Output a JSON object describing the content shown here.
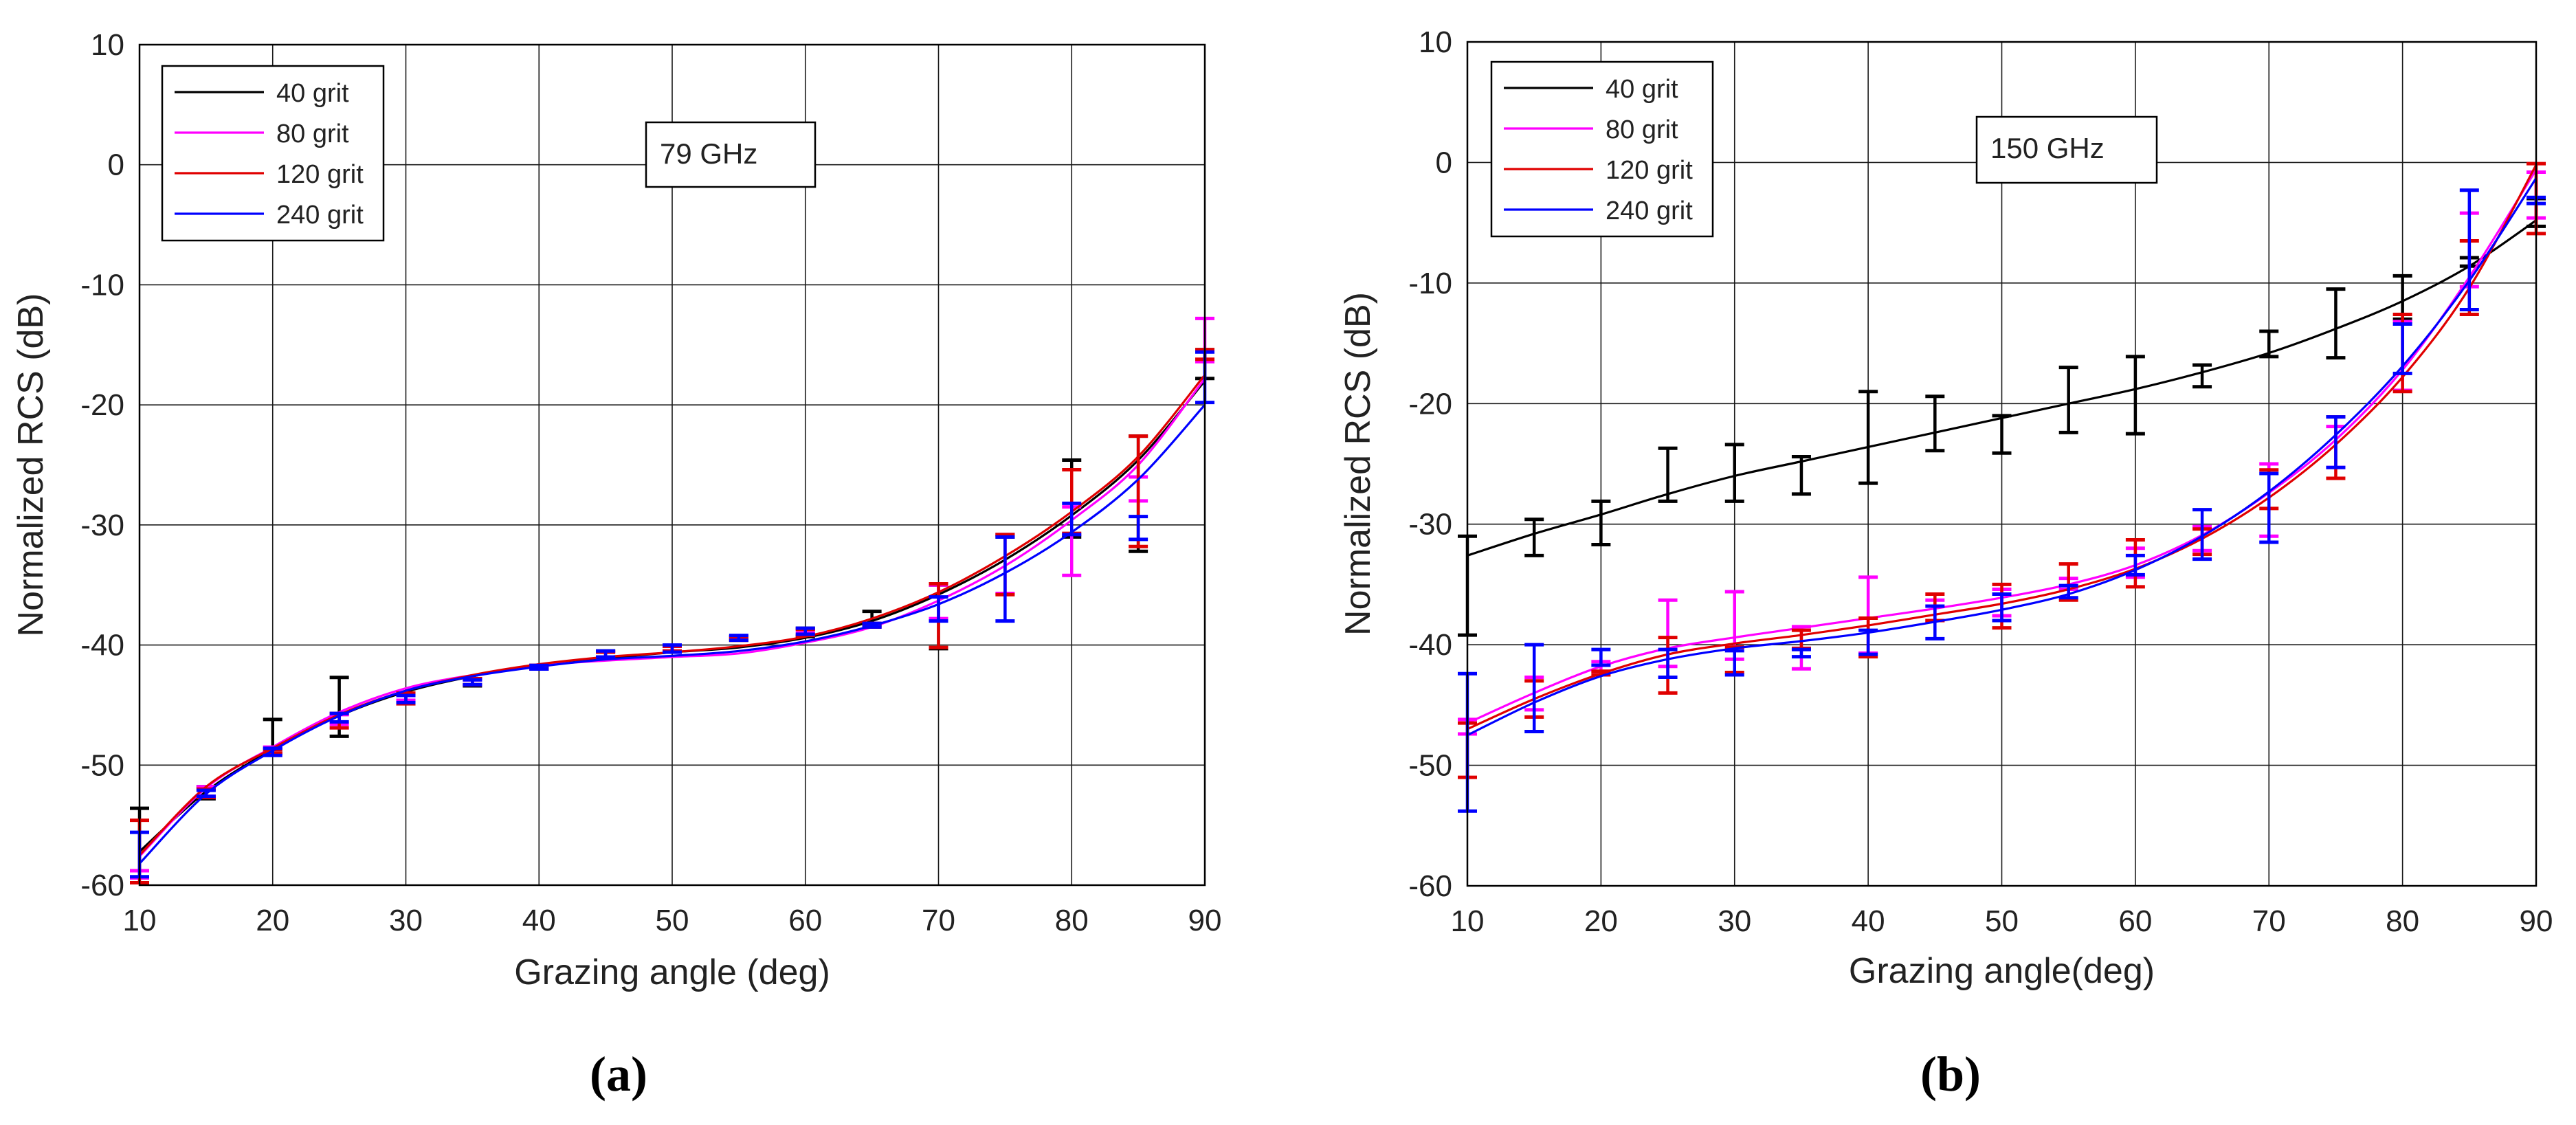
{
  "figure": {
    "label_a": "(a)",
    "label_b": "(b)"
  },
  "chart_data": [
    {
      "type": "line",
      "title": "",
      "annotation": "79 GHz",
      "xlabel": "Grazing angle (deg)",
      "ylabel": "Normalized RCS (dB)",
      "xlim": [
        10,
        90
      ],
      "ylim": [
        -60,
        10
      ],
      "xticks": [
        10,
        20,
        30,
        40,
        50,
        60,
        70,
        80,
        90
      ],
      "yticks": [
        10,
        0,
        -10,
        -20,
        -30,
        -40,
        -50,
        -60
      ],
      "grid": true,
      "legend_position": "top-left",
      "series": [
        {
          "name": "40 grit",
          "color": "#000000",
          "curve": {
            "x": [
              10,
              15,
              20,
              25,
              30,
              35,
              40,
              45,
              50,
              55,
              60,
              65,
              70,
              75,
              80,
              85,
              90
            ],
            "y": [
              -57.2,
              -52.2,
              -48.7,
              -45.9,
              -43.9,
              -42.6,
              -41.7,
              -41.1,
              -40.6,
              -40.2,
              -39.4,
              -38.0,
              -35.8,
              -32.9,
              -29.2,
              -24.6,
              -18.0
            ]
          },
          "err": {
            "x": [
              10,
              15,
              20,
              25,
              30,
              35,
              40,
              45,
              50,
              55,
              60,
              65,
              70,
              75,
              80,
              85,
              90
            ],
            "lo": [
              -58.8,
              -52.8,
              -49.0,
              -47.6,
              -44.8,
              -43.4,
              -42.0,
              -41.0,
              -40.6,
              -39.6,
              -39.3,
              -38.4,
              -40.3,
              -31.0,
              -31.0,
              -32.2,
              -17.8
            ],
            "hi": [
              -53.6,
              -51.8,
              -46.2,
              -42.7,
              -44.0,
              -42.8,
              -41.7,
              -40.5,
              -40.1,
              -39.3,
              -38.6,
              -37.2,
              -35.0,
              -30.8,
              -24.6,
              -22.6,
              -15.4
            ]
          }
        },
        {
          "name": "80 grit",
          "color": "#ff00ff",
          "curve": {
            "x": [
              10,
              15,
              20,
              25,
              30,
              35,
              40,
              45,
              50,
              55,
              60,
              65,
              70,
              75,
              80,
              85,
              90
            ],
            "y": [
              -57.6,
              -51.9,
              -48.5,
              -45.6,
              -43.6,
              -42.5,
              -41.7,
              -41.3,
              -41.0,
              -40.7,
              -39.8,
              -38.5,
              -36.3,
              -33.4,
              -29.6,
              -25.0,
              -17.8
            ]
          },
          "err": {
            "x": [
              10,
              15,
              20,
              25,
              30,
              35,
              40,
              45,
              50,
              55,
              60,
              65,
              70,
              75,
              80,
              85,
              90
            ],
            "lo": [
              -59.4,
              -52.6,
              -49.0,
              -46.6,
              -44.6,
              -43.3,
              -42.0,
              -41.0,
              -40.5,
              -39.5,
              -39.0,
              -38.5,
              -37.8,
              -35.7,
              -34.2,
              -28.0,
              -16.4
            ],
            "hi": [
              -58.8,
              -51.8,
              -48.5,
              -45.8,
              -44.0,
              -42.9,
              -41.7,
              -40.6,
              -40.1,
              -39.3,
              -38.7,
              -38.2,
              -35.0,
              -30.8,
              -28.5,
              -26.0,
              -12.8
            ]
          }
        },
        {
          "name": "120 grit",
          "color": "#e00000",
          "curve": {
            "x": [
              10,
              15,
              20,
              25,
              30,
              35,
              40,
              45,
              50,
              55,
              60,
              65,
              70,
              75,
              80,
              85,
              90
            ],
            "y": [
              -57.5,
              -51.8,
              -48.6,
              -45.8,
              -43.8,
              -42.5,
              -41.6,
              -41.0,
              -40.6,
              -40.1,
              -39.3,
              -37.8,
              -35.6,
              -32.6,
              -28.9,
              -24.3,
              -17.5
            ]
          },
          "err": {
            "x": [
              10,
              15,
              20,
              25,
              30,
              35,
              40,
              45,
              50,
              55,
              60,
              65,
              70,
              75,
              80,
              85,
              90
            ],
            "lo": [
              -59.8,
              -52.7,
              -49.0,
              -46.9,
              -44.9,
              -43.3,
              -42.0,
              -41.0,
              -40.5,
              -39.6,
              -39.2,
              -38.5,
              -40.2,
              -35.8,
              -30.7,
              -31.8,
              -16.2
            ],
            "hi": [
              -54.6,
              -52.0,
              -48.7,
              -45.7,
              -44.0,
              -42.8,
              -41.7,
              -40.6,
              -40.1,
              -39.3,
              -38.7,
              -38.2,
              -34.9,
              -30.8,
              -25.4,
              -22.6,
              -15.4
            ]
          }
        },
        {
          "name": "240 grit",
          "color": "#0000ff",
          "curve": {
            "x": [
              10,
              15,
              20,
              25,
              30,
              35,
              40,
              45,
              50,
              55,
              60,
              65,
              70,
              75,
              80,
              85,
              90
            ],
            "y": [
              -58.2,
              -52.4,
              -48.8,
              -45.9,
              -43.8,
              -42.6,
              -41.8,
              -41.2,
              -40.9,
              -40.5,
              -39.7,
              -38.4,
              -36.6,
              -34.0,
              -30.6,
              -26.2,
              -20.0
            ]
          },
          "err": {
            "x": [
              10,
              15,
              20,
              25,
              30,
              35,
              40,
              45,
              50,
              55,
              60,
              65,
              70,
              75,
              80,
              85,
              90
            ],
            "lo": [
              -59.3,
              -52.6,
              -49.2,
              -46.4,
              -44.8,
              -43.3,
              -42.0,
              -41.0,
              -40.6,
              -39.6,
              -39.1,
              -38.5,
              -38.0,
              -38.0,
              -30.8,
              -31.2,
              -19.8
            ],
            "hi": [
              -55.6,
              -52.1,
              -48.6,
              -45.7,
              -44.2,
              -42.9,
              -41.7,
              -40.5,
              -40.0,
              -39.2,
              -38.6,
              -38.2,
              -36.0,
              -31.0,
              -28.2,
              -29.3,
              -15.6
            ]
          }
        }
      ]
    },
    {
      "type": "line",
      "title": "",
      "annotation": "150 GHz",
      "xlabel": "Grazing angle(deg)",
      "ylabel": "Normalized RCS (dB)",
      "xlim": [
        10,
        90
      ],
      "ylim": [
        -60,
        10
      ],
      "xticks": [
        10,
        20,
        30,
        40,
        50,
        60,
        70,
        80,
        90
      ],
      "yticks": [
        10,
        0,
        -10,
        -20,
        -30,
        -40,
        -50,
        -60
      ],
      "grid": true,
      "legend_position": "top-left",
      "series": [
        {
          "name": "40 grit",
          "color": "#000000",
          "curve": {
            "x": [
              10,
              15,
              20,
              25,
              30,
              35,
              40,
              45,
              50,
              55,
              60,
              65,
              70,
              75,
              80,
              85,
              90
            ],
            "y": [
              -32.6,
              -30.8,
              -29.2,
              -27.5,
              -26.0,
              -24.8,
              -23.6,
              -22.4,
              -21.2,
              -20.0,
              -18.8,
              -17.4,
              -15.8,
              -13.8,
              -11.5,
              -8.6,
              -4.8
            ]
          },
          "err": {
            "x": [
              10,
              15,
              20,
              25,
              30,
              35,
              40,
              45,
              50,
              55,
              60,
              65,
              70,
              75,
              80,
              85,
              90
            ],
            "lo": [
              -39.2,
              -32.6,
              -31.7,
              -28.1,
              -28.1,
              -27.5,
              -26.6,
              -23.9,
              -24.1,
              -22.4,
              -22.5,
              -18.6,
              -16.1,
              -16.2,
              -13.0,
              -8.6,
              -5.3
            ],
            "hi": [
              -31.0,
              -29.6,
              -28.1,
              -23.7,
              -23.4,
              -24.4,
              -19.0,
              -19.4,
              -21.0,
              -17.0,
              -16.1,
              -16.8,
              -14.0,
              -10.5,
              -9.4,
              -7.9,
              -3.0
            ]
          }
        },
        {
          "name": "80 grit",
          "color": "#ff00ff",
          "curve": {
            "x": [
              10,
              15,
              20,
              25,
              30,
              35,
              40,
              45,
              50,
              55,
              60,
              65,
              70,
              75,
              80,
              85,
              90
            ],
            "y": [
              -46.5,
              -44.0,
              -41.8,
              -40.3,
              -39.4,
              -38.6,
              -37.8,
              -37.0,
              -36.1,
              -35.0,
              -33.4,
              -30.9,
              -27.4,
              -23.0,
              -17.2,
              -9.5,
              -0.6
            ]
          },
          "err": {
            "x": [
              10,
              15,
              20,
              25,
              30,
              35,
              40,
              45,
              50,
              55,
              60,
              65,
              70,
              75,
              80,
              85,
              90
            ],
            "lo": [
              -47.4,
              -45.4,
              -42.2,
              -41.8,
              -41.2,
              -42.0,
              -40.7,
              -38.0,
              -37.6,
              -35.4,
              -34.4,
              -32.2,
              -31.0,
              -25.3,
              -18.9,
              -10.3,
              -4.6
            ],
            "hi": [
              -46.2,
              -42.7,
              -41.4,
              -36.3,
              -35.6,
              -38.5,
              -34.4,
              -36.3,
              -35.4,
              -34.5,
              -32.0,
              -30.2,
              -25.0,
              -21.9,
              -13.2,
              -4.2,
              -0.8
            ]
          }
        },
        {
          "name": "120 grit",
          "color": "#e00000",
          "curve": {
            "x": [
              10,
              15,
              20,
              25,
              30,
              35,
              40,
              45,
              50,
              55,
              60,
              65,
              70,
              75,
              80,
              85,
              90
            ],
            "y": [
              -47.0,
              -44.5,
              -42.4,
              -40.8,
              -39.9,
              -39.2,
              -38.4,
              -37.5,
              -36.6,
              -35.4,
              -33.7,
              -31.2,
              -27.8,
              -23.4,
              -17.8,
              -10.4,
              -0.2
            ]
          },
          "err": {
            "x": [
              10,
              15,
              20,
              25,
              30,
              35,
              40,
              45,
              50,
              55,
              60,
              65,
              70,
              75,
              80,
              85,
              90
            ],
            "lo": [
              -51.0,
              -46.0,
              -42.5,
              -44.0,
              -42.3,
              -40.3,
              -41.0,
              -38.0,
              -38.6,
              -36.3,
              -35.2,
              -32.5,
              -28.7,
              -26.2,
              -19.0,
              -12.6,
              -5.9
            ],
            "hi": [
              -46.5,
              -43.0,
              -42.2,
              -39.4,
              -40.2,
              -38.8,
              -37.8,
              -35.8,
              -35.0,
              -33.3,
              -31.3,
              -30.4,
              -25.5,
              -21.1,
              -12.6,
              -6.5,
              -0.1
            ]
          }
        },
        {
          "name": "240 grit",
          "color": "#0000ff",
          "curve": {
            "x": [
              10,
              15,
              20,
              25,
              30,
              35,
              40,
              45,
              50,
              55,
              60,
              65,
              70,
              75,
              80,
              85,
              90
            ],
            "y": [
              -47.5,
              -44.8,
              -42.6,
              -41.2,
              -40.3,
              -39.7,
              -39.0,
              -38.1,
              -37.1,
              -35.8,
              -33.8,
              -31.0,
              -27.3,
              -22.6,
              -16.9,
              -9.8,
              -1.3
            ]
          },
          "err": {
            "x": [
              10,
              15,
              20,
              25,
              30,
              35,
              40,
              45,
              50,
              55,
              60,
              65,
              70,
              75,
              80,
              85,
              90
            ],
            "lo": [
              -53.8,
              -47.2,
              -41.7,
              -42.7,
              -42.5,
              -41.0,
              -40.8,
              -39.5,
              -38.0,
              -36.1,
              -34.2,
              -32.9,
              -31.5,
              -25.3,
              -17.5,
              -12.2,
              -3.4
            ],
            "hi": [
              -42.4,
              -40.0,
              -40.4,
              -40.4,
              -40.5,
              -40.4,
              -38.8,
              -36.8,
              -35.8,
              -35.1,
              -32.6,
              -28.8,
              -25.8,
              -21.1,
              -13.4,
              -2.3,
              -2.9
            ]
          }
        }
      ]
    }
  ]
}
